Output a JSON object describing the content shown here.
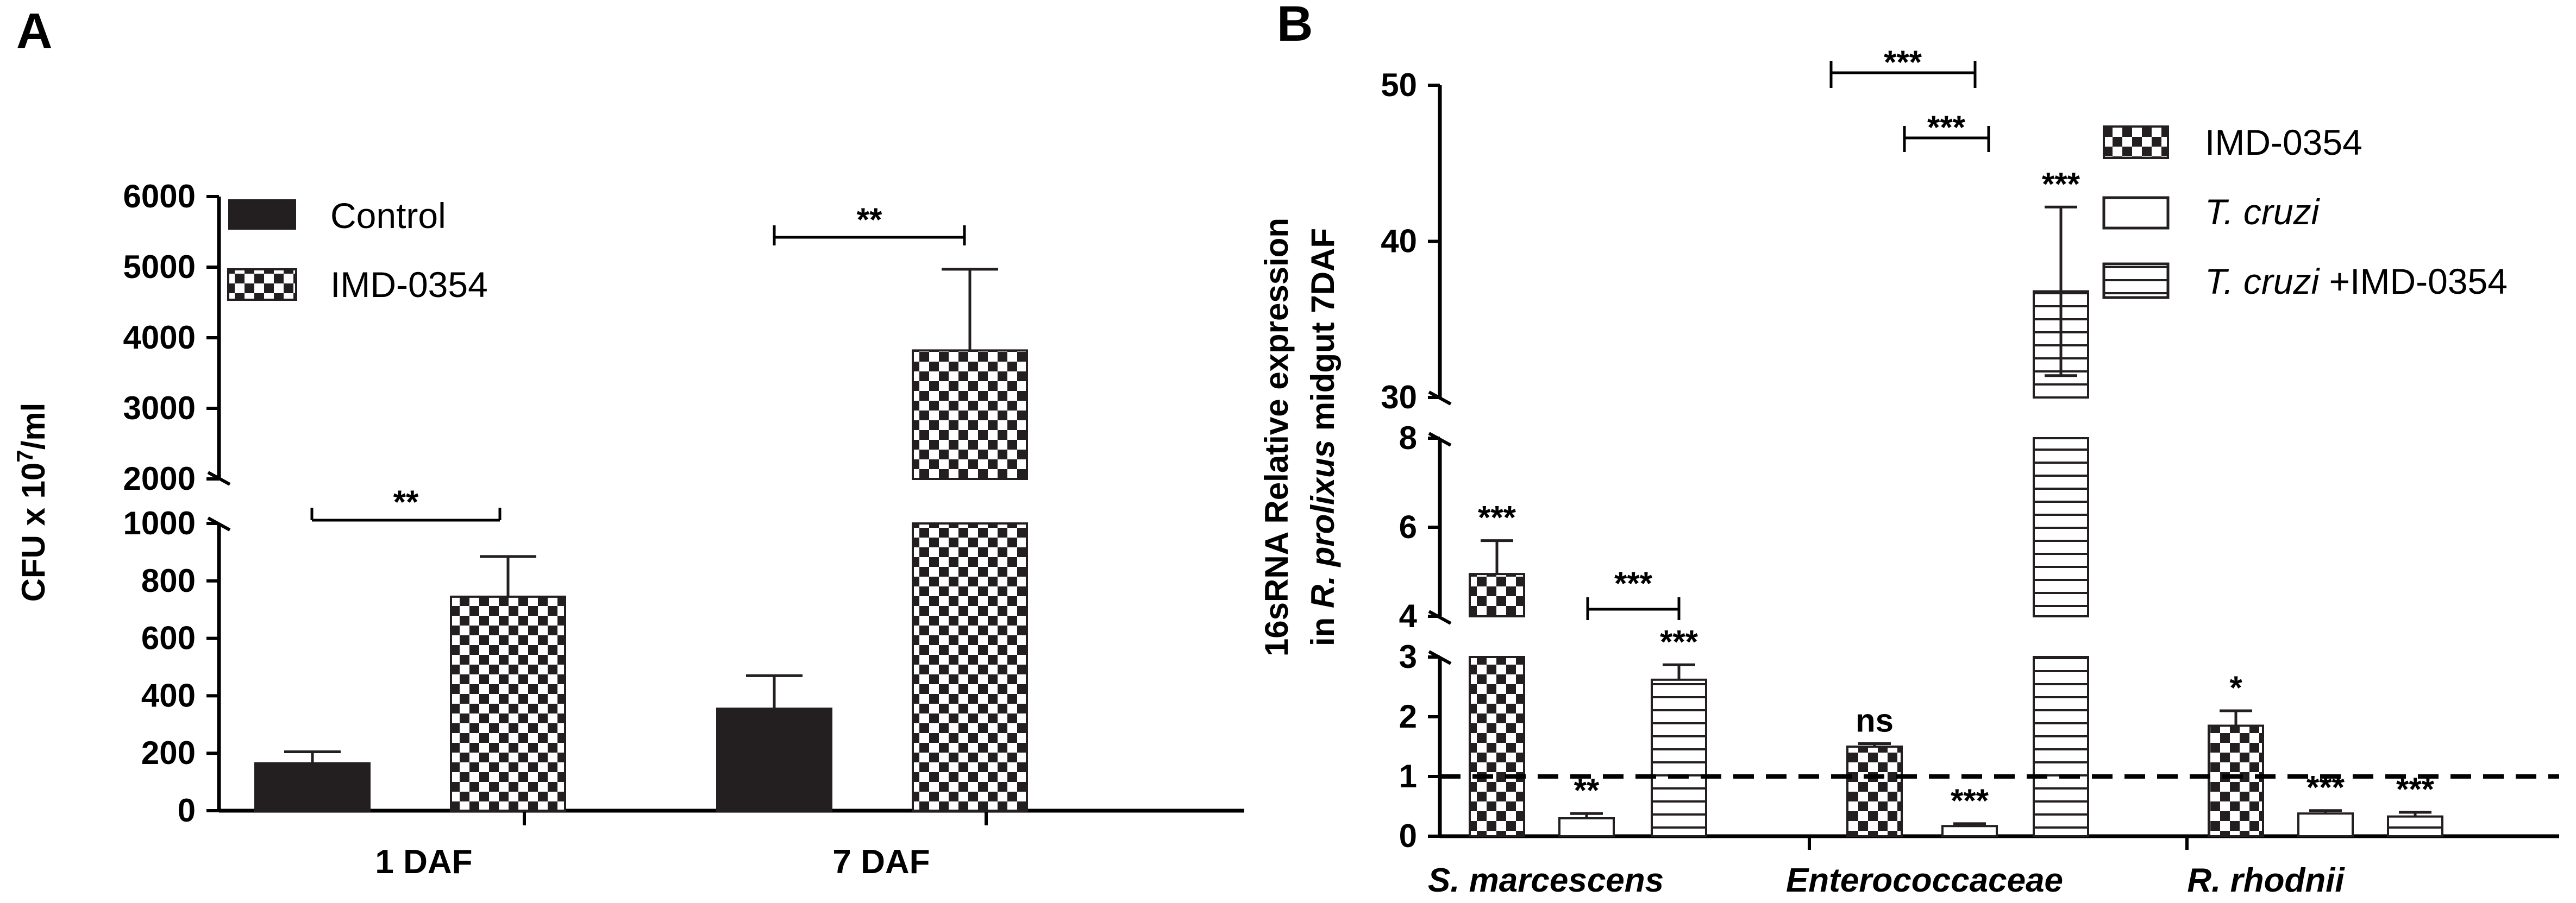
{
  "panelA": {
    "letter": "A",
    "ylabel_main": "CFU x 10",
    "ylabel_sup": "7",
    "ylabel_end": "/ml",
    "legend": [
      "Control",
      "IMD-0354"
    ],
    "categories": [
      "1 DAF",
      "7 DAF"
    ],
    "ticks_low": [
      "0",
      "200",
      "400",
      "600",
      "800",
      "1000"
    ],
    "ticks_high": [
      "2000",
      "3000",
      "4000",
      "5000",
      "6000"
    ],
    "significance": [
      "**",
      "**"
    ]
  },
  "panelB": {
    "letter": "B",
    "ylabel_line1": "16sRNA Relative expression",
    "ylabel_line2_pre": "in ",
    "ylabel_line2_italic": "R. prolixus",
    "ylabel_line2_post": " midgut 7DAF",
    "legend": [
      {
        "italic": "",
        "text": "IMD-0354"
      },
      {
        "italic": "T. cruzi",
        "text": ""
      },
      {
        "italic": "T. cruzi",
        "text": " +IMD-0354"
      }
    ],
    "categories": [
      "S. marcescens",
      "Enterococcaceae",
      "R. rhodnii"
    ],
    "ticks_low": [
      "0",
      "1",
      "2",
      "3"
    ],
    "ticks_mid": [
      "4",
      "6",
      "8"
    ],
    "ticks_high": [
      "30",
      "40",
      "50"
    ],
    "significance": {
      "bar_labels": [
        "***",
        "**",
        "***",
        "ns",
        "***",
        "***",
        "*",
        "***",
        "***"
      ],
      "brackets": [
        "***",
        "***",
        "***"
      ]
    }
  },
  "chart_data": [
    {
      "type": "bar",
      "title": "",
      "xlabel": "",
      "ylabel": "CFU x 10^7/ml",
      "categories": [
        "1 DAF",
        "7 DAF"
      ],
      "series": [
        {
          "name": "Control",
          "values": [
            165,
            355
          ],
          "errors": [
            40,
            115
          ],
          "color": "#231f20",
          "pattern": "solid"
        },
        {
          "name": "IMD-0354",
          "values": [
            745,
            3820
          ],
          "errors": [
            140,
            1150
          ],
          "color": "#231f20",
          "pattern": "checker"
        }
      ],
      "ylim": [
        0,
        6000
      ],
      "y_axis_break": [
        1000,
        2000
      ],
      "significance": [
        {
          "between": [
            "Control",
            "IMD-0354"
          ],
          "category": "1 DAF",
          "label": "**"
        },
        {
          "between": [
            "Control",
            "IMD-0354"
          ],
          "category": "7 DAF",
          "label": "**"
        }
      ]
    },
    {
      "type": "bar",
      "title": "",
      "xlabel": "",
      "ylabel": "16sRNA Relative expression in R. prolixus midgut 7DAF",
      "categories": [
        "S. marcescens",
        "Enterococcaceae",
        "R. rhodnii"
      ],
      "series": [
        {
          "name": "IMD-0354",
          "values": [
            4.95,
            1.5,
            1.85
          ],
          "errors": [
            0.75,
            0.05,
            0.25
          ],
          "pattern": "checker",
          "labels": [
            "***",
            "ns",
            "*"
          ]
        },
        {
          "name": "T. cruzi",
          "values": [
            0.3,
            0.17,
            0.38
          ],
          "errors": [
            0.08,
            0.04,
            0.05
          ],
          "pattern": "open",
          "labels": [
            "**",
            "***",
            "***"
          ]
        },
        {
          "name": "T. cruzi +IMD-0354",
          "values": [
            2.62,
            36.8,
            0.33
          ],
          "errors": [
            0.25,
            5.4,
            0.07
          ],
          "pattern": "horizontal-lines",
          "labels": [
            "***",
            "***",
            "***"
          ]
        }
      ],
      "ylim": [
        0,
        50
      ],
      "y_axis_breaks": [
        [
          3,
          4
        ],
        [
          8,
          30
        ]
      ],
      "reference_line": 1,
      "significance_brackets": [
        {
          "category": "S. marcescens",
          "between": [
            "T. cruzi",
            "T. cruzi +IMD-0354"
          ],
          "label": "***"
        },
        {
          "category": "Enterococcaceae",
          "between": [
            "IMD-0354",
            "T. cruzi +IMD-0354"
          ],
          "label": "***"
        },
        {
          "category": "Enterococcaceae",
          "between": [
            "T. cruzi",
            "T. cruzi +IMD-0354"
          ],
          "label": "***"
        }
      ]
    }
  ]
}
